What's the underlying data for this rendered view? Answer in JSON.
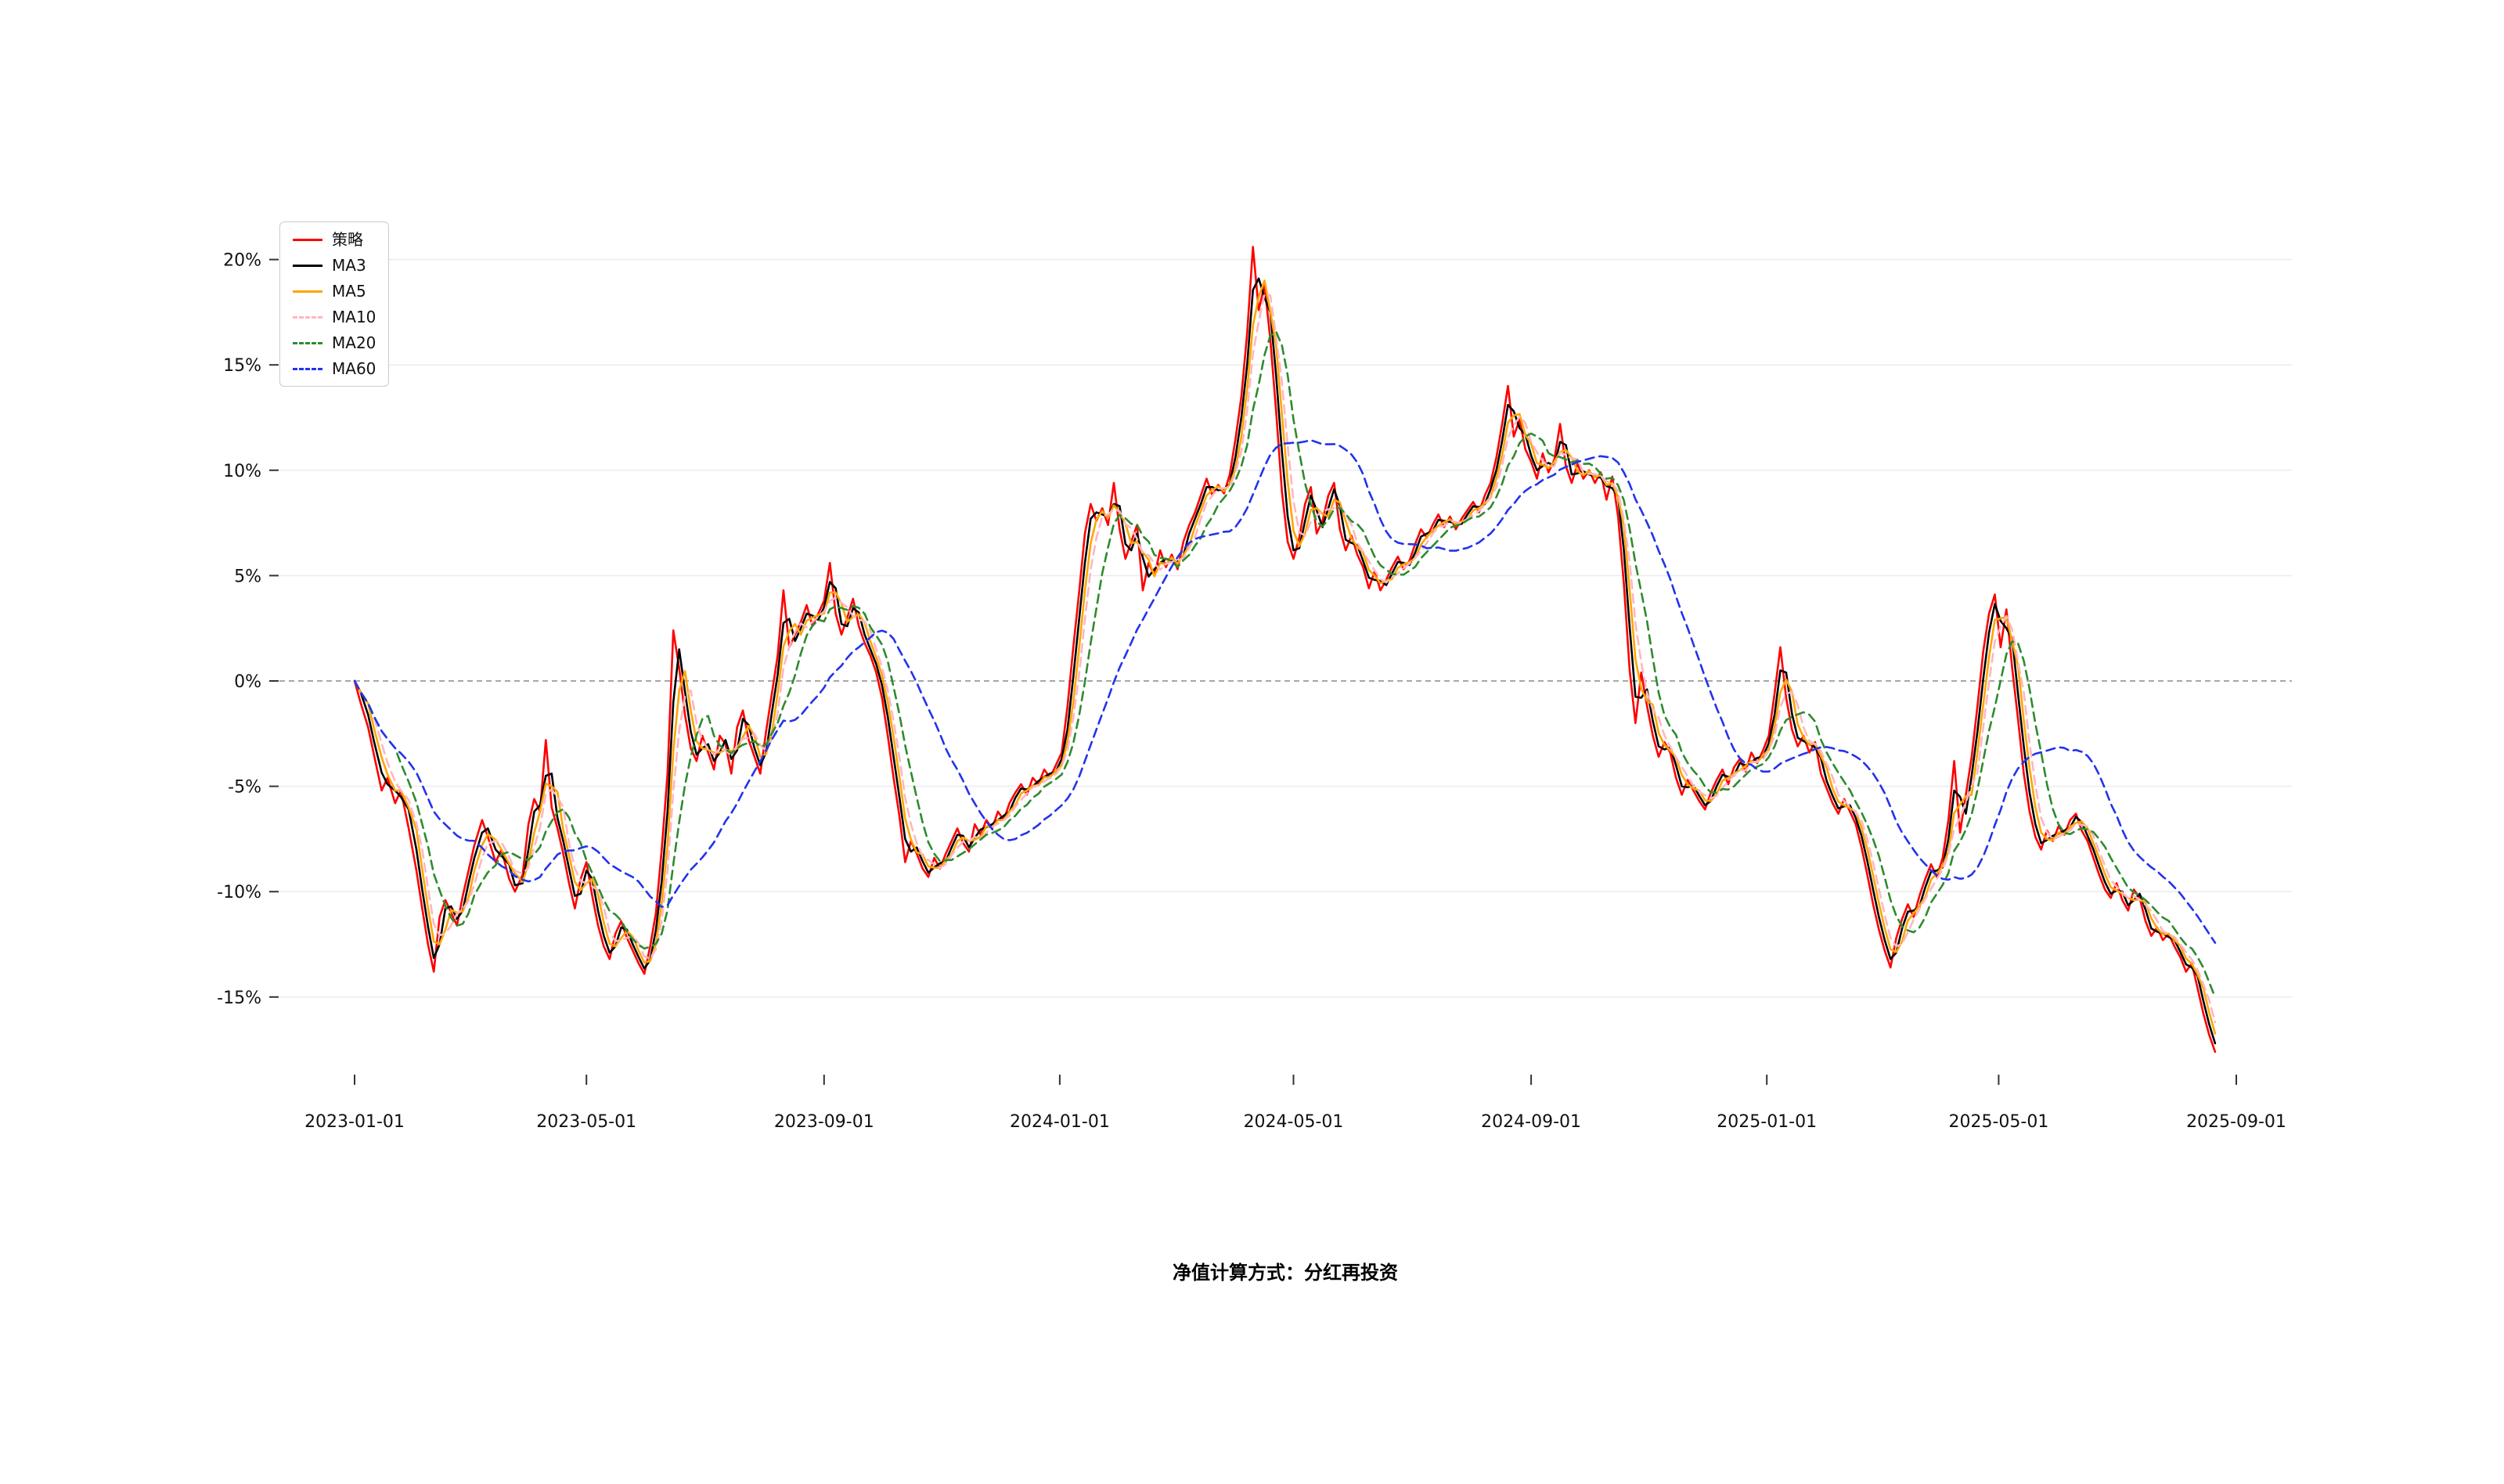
{
  "page": {
    "background": "#ffffff"
  },
  "chart_data": {
    "type": "line",
    "caption": "净值计算方式：分红再投资",
    "legend_position": "upper-left",
    "grid": "horizontal-light-with-dashed-zero-line",
    "x_start_date": "2023-01-01",
    "x_tick_labels": [
      "2023-01-01",
      "2023-05-01",
      "2023-09-01",
      "2024-01-01",
      "2024-05-01",
      "2024-09-01",
      "2025-01-01",
      "2025-05-01",
      "2025-09-01"
    ],
    "y_tick_labels": [
      "20%",
      "15%",
      "10%",
      "5%",
      "0%",
      "-5%",
      "-10%",
      "-15%"
    ],
    "y_tick_values": [
      20,
      15,
      10,
      5,
      0,
      -5,
      -10,
      -15
    ],
    "ylim": [
      -18.7,
      21.7
    ],
    "series": [
      {
        "label": "策略",
        "color": "#ff0000",
        "style": "solid",
        "ma_window": 1
      },
      {
        "label": "MA3",
        "color": "#000000",
        "style": "solid",
        "ma_window": 2
      },
      {
        "label": "MA5",
        "color": "#ffa500",
        "style": "solid",
        "ma_window": 3
      },
      {
        "label": "MA10",
        "color": "#ffb6c1",
        "style": "dashed",
        "ma_window": 4
      },
      {
        "label": "MA20",
        "color": "#2e8b2e",
        "style": "dashed",
        "ma_window": 7
      },
      {
        "label": "MA60",
        "color": "#2233ee",
        "style": "dashed",
        "ma_window": 20
      }
    ],
    "strategy_points": [
      [
        "2023-01-01",
        0.0
      ],
      [
        "2023-01-04",
        -1.0
      ],
      [
        "2023-01-08",
        -2.2
      ],
      [
        "2023-01-11",
        -3.5
      ],
      [
        "2023-01-15",
        -5.2
      ],
      [
        "2023-01-18",
        -4.6
      ],
      [
        "2023-01-22",
        -5.8
      ],
      [
        "2023-01-25",
        -5.2
      ],
      [
        "2023-01-29",
        -7.0
      ],
      [
        "2023-02-02",
        -9.0
      ],
      [
        "2023-02-05",
        -10.8
      ],
      [
        "2023-02-08",
        -12.5
      ],
      [
        "2023-02-11",
        -13.8
      ],
      [
        "2023-02-14",
        -11.2
      ],
      [
        "2023-02-17",
        -10.4
      ],
      [
        "2023-02-20",
        -11.0
      ],
      [
        "2023-02-23",
        -11.6
      ],
      [
        "2023-02-26",
        -10.2
      ],
      [
        "2023-03-01",
        -9.0
      ],
      [
        "2023-03-04",
        -7.8
      ],
      [
        "2023-03-08",
        -6.6
      ],
      [
        "2023-03-11",
        -7.4
      ],
      [
        "2023-03-15",
        -8.6
      ],
      [
        "2023-03-18",
        -8.0
      ],
      [
        "2023-03-22",
        -9.4
      ],
      [
        "2023-03-25",
        -10.0
      ],
      [
        "2023-03-29",
        -9.2
      ],
      [
        "2023-04-01",
        -6.8
      ],
      [
        "2023-04-04",
        -5.6
      ],
      [
        "2023-04-07",
        -6.2
      ],
      [
        "2023-04-10",
        -2.8
      ],
      [
        "2023-04-13",
        -6.0
      ],
      [
        "2023-04-16",
        -7.0
      ],
      [
        "2023-04-19",
        -8.2
      ],
      [
        "2023-04-22",
        -9.6
      ],
      [
        "2023-04-25",
        -10.8
      ],
      [
        "2023-04-28",
        -9.4
      ],
      [
        "2023-05-01",
        -8.6
      ],
      [
        "2023-05-04",
        -10.2
      ],
      [
        "2023-05-07",
        -11.6
      ],
      [
        "2023-05-10",
        -12.6
      ],
      [
        "2023-05-13",
        -13.2
      ],
      [
        "2023-05-16",
        -12.0
      ],
      [
        "2023-05-19",
        -11.4
      ],
      [
        "2023-05-22",
        -12.2
      ],
      [
        "2023-05-25",
        -12.8
      ],
      [
        "2023-05-28",
        -13.4
      ],
      [
        "2023-05-31",
        -13.9
      ],
      [
        "2023-06-03",
        -12.6
      ],
      [
        "2023-06-06",
        -11.0
      ],
      [
        "2023-06-09",
        -8.0
      ],
      [
        "2023-06-12",
        -4.4
      ],
      [
        "2023-06-15",
        2.4
      ],
      [
        "2023-06-18",
        0.6
      ],
      [
        "2023-06-21",
        -1.6
      ],
      [
        "2023-06-24",
        -3.2
      ],
      [
        "2023-06-27",
        -3.8
      ],
      [
        "2023-06-30",
        -2.6
      ],
      [
        "2023-07-03",
        -3.4
      ],
      [
        "2023-07-06",
        -4.2
      ],
      [
        "2023-07-09",
        -2.6
      ],
      [
        "2023-07-12",
        -3.0
      ],
      [
        "2023-07-15",
        -4.4
      ],
      [
        "2023-07-18",
        -2.2
      ],
      [
        "2023-07-21",
        -1.4
      ],
      [
        "2023-07-24",
        -2.8
      ],
      [
        "2023-07-27",
        -3.6
      ],
      [
        "2023-07-30",
        -4.4
      ],
      [
        "2023-08-02",
        -2.4
      ],
      [
        "2023-08-05",
        -0.6
      ],
      [
        "2023-08-08",
        1.2
      ],
      [
        "2023-08-11",
        4.3
      ],
      [
        "2023-08-14",
        1.6
      ],
      [
        "2023-08-17",
        2.2
      ],
      [
        "2023-08-20",
        2.8
      ],
      [
        "2023-08-23",
        3.6
      ],
      [
        "2023-08-26",
        2.6
      ],
      [
        "2023-08-29",
        3.2
      ],
      [
        "2023-09-01",
        3.8
      ],
      [
        "2023-09-04",
        5.6
      ],
      [
        "2023-09-07",
        3.2
      ],
      [
        "2023-09-10",
        2.2
      ],
      [
        "2023-09-13",
        3.0
      ],
      [
        "2023-09-16",
        3.9
      ],
      [
        "2023-09-19",
        2.6
      ],
      [
        "2023-09-22",
        1.8
      ],
      [
        "2023-09-25",
        1.2
      ],
      [
        "2023-09-28",
        0.4
      ],
      [
        "2023-10-01",
        -0.8
      ],
      [
        "2023-10-04",
        -2.6
      ],
      [
        "2023-10-07",
        -4.6
      ],
      [
        "2023-10-10",
        -6.4
      ],
      [
        "2023-10-13",
        -8.6
      ],
      [
        "2023-10-16",
        -7.6
      ],
      [
        "2023-10-19",
        -8.2
      ],
      [
        "2023-10-22",
        -8.9
      ],
      [
        "2023-10-25",
        -9.3
      ],
      [
        "2023-10-28",
        -8.4
      ],
      [
        "2023-10-31",
        -8.9
      ],
      [
        "2023-11-03",
        -8.2
      ],
      [
        "2023-11-06",
        -7.6
      ],
      [
        "2023-11-09",
        -7.0
      ],
      [
        "2023-11-12",
        -7.7
      ],
      [
        "2023-11-15",
        -8.1
      ],
      [
        "2023-11-18",
        -6.8
      ],
      [
        "2023-11-21",
        -7.3
      ],
      [
        "2023-11-24",
        -6.6
      ],
      [
        "2023-11-27",
        -7.0
      ],
      [
        "2023-11-30",
        -6.2
      ],
      [
        "2023-12-03",
        -6.6
      ],
      [
        "2023-12-06",
        -5.8
      ],
      [
        "2023-12-09",
        -5.3
      ],
      [
        "2023-12-12",
        -4.9
      ],
      [
        "2023-12-15",
        -5.4
      ],
      [
        "2023-12-18",
        -4.6
      ],
      [
        "2023-12-21",
        -4.9
      ],
      [
        "2023-12-24",
        -4.2
      ],
      [
        "2023-12-27",
        -4.6
      ],
      [
        "2023-12-30",
        -4.0
      ],
      [
        "2024-01-02",
        -3.4
      ],
      [
        "2024-01-05",
        -1.2
      ],
      [
        "2024-01-08",
        1.6
      ],
      [
        "2024-01-11",
        4.2
      ],
      [
        "2024-01-14",
        7.0
      ],
      [
        "2024-01-17",
        8.4
      ],
      [
        "2024-01-20",
        7.6
      ],
      [
        "2024-01-23",
        8.2
      ],
      [
        "2024-01-26",
        7.4
      ],
      [
        "2024-01-29",
        9.4
      ],
      [
        "2024-02-01",
        7.2
      ],
      [
        "2024-02-04",
        5.8
      ],
      [
        "2024-02-07",
        6.6
      ],
      [
        "2024-02-10",
        7.4
      ],
      [
        "2024-02-13",
        4.3
      ],
      [
        "2024-02-16",
        5.6
      ],
      [
        "2024-02-19",
        5.0
      ],
      [
        "2024-02-22",
        6.2
      ],
      [
        "2024-02-25",
        5.4
      ],
      [
        "2024-02-28",
        6.0
      ],
      [
        "2024-03-02",
        5.3
      ],
      [
        "2024-03-05",
        6.6
      ],
      [
        "2024-03-08",
        7.4
      ],
      [
        "2024-03-11",
        8.0
      ],
      [
        "2024-03-14",
        8.8
      ],
      [
        "2024-03-17",
        9.6
      ],
      [
        "2024-03-20",
        8.8
      ],
      [
        "2024-03-23",
        9.3
      ],
      [
        "2024-03-26",
        8.9
      ],
      [
        "2024-03-29",
        9.8
      ],
      [
        "2024-04-01",
        11.5
      ],
      [
        "2024-04-04",
        13.5
      ],
      [
        "2024-04-07",
        16.5
      ],
      [
        "2024-04-10",
        20.6
      ],
      [
        "2024-04-13",
        17.6
      ],
      [
        "2024-04-16",
        18.8
      ],
      [
        "2024-04-19",
        16.2
      ],
      [
        "2024-04-22",
        12.8
      ],
      [
        "2024-04-25",
        9.0
      ],
      [
        "2024-04-28",
        6.6
      ],
      [
        "2024-05-01",
        5.8
      ],
      [
        "2024-05-04",
        6.8
      ],
      [
        "2024-05-07",
        8.4
      ],
      [
        "2024-05-10",
        9.2
      ],
      [
        "2024-05-13",
        7.0
      ],
      [
        "2024-05-16",
        7.6
      ],
      [
        "2024-05-19",
        8.8
      ],
      [
        "2024-05-22",
        9.4
      ],
      [
        "2024-05-25",
        7.2
      ],
      [
        "2024-05-28",
        6.2
      ],
      [
        "2024-05-31",
        6.9
      ],
      [
        "2024-06-03",
        6.0
      ],
      [
        "2024-06-06",
        5.4
      ],
      [
        "2024-06-09",
        4.4
      ],
      [
        "2024-06-12",
        5.2
      ],
      [
        "2024-06-15",
        4.3
      ],
      [
        "2024-06-18",
        4.8
      ],
      [
        "2024-06-21",
        5.4
      ],
      [
        "2024-06-24",
        5.9
      ],
      [
        "2024-06-27",
        5.3
      ],
      [
        "2024-06-30",
        5.7
      ],
      [
        "2024-07-03",
        6.5
      ],
      [
        "2024-07-06",
        7.2
      ],
      [
        "2024-07-09",
        6.8
      ],
      [
        "2024-07-12",
        7.4
      ],
      [
        "2024-07-15",
        7.9
      ],
      [
        "2024-07-18",
        7.3
      ],
      [
        "2024-07-21",
        7.8
      ],
      [
        "2024-07-24",
        7.2
      ],
      [
        "2024-07-27",
        7.7
      ],
      [
        "2024-07-30",
        8.1
      ],
      [
        "2024-08-02",
        8.5
      ],
      [
        "2024-08-05",
        8.0
      ],
      [
        "2024-08-08",
        8.8
      ],
      [
        "2024-08-11",
        9.4
      ],
      [
        "2024-08-14",
        10.6
      ],
      [
        "2024-08-17",
        12.2
      ],
      [
        "2024-08-20",
        14.0
      ],
      [
        "2024-08-23",
        11.6
      ],
      [
        "2024-08-26",
        12.4
      ],
      [
        "2024-08-29",
        11.0
      ],
      [
        "2024-09-01",
        10.4
      ],
      [
        "2024-09-04",
        9.6
      ],
      [
        "2024-09-07",
        10.8
      ],
      [
        "2024-09-10",
        9.9
      ],
      [
        "2024-09-13",
        10.5
      ],
      [
        "2024-09-16",
        12.2
      ],
      [
        "2024-09-19",
        10.2
      ],
      [
        "2024-09-22",
        9.4
      ],
      [
        "2024-09-25",
        10.3
      ],
      [
        "2024-09-28",
        9.6
      ],
      [
        "2024-10-01",
        10.0
      ],
      [
        "2024-10-04",
        9.4
      ],
      [
        "2024-10-07",
        9.9
      ],
      [
        "2024-10-10",
        8.6
      ],
      [
        "2024-10-13",
        9.7
      ],
      [
        "2024-10-16",
        7.8
      ],
      [
        "2024-10-19",
        4.6
      ],
      [
        "2024-10-22",
        0.5
      ],
      [
        "2024-10-25",
        -2.0
      ],
      [
        "2024-10-28",
        0.4
      ],
      [
        "2024-10-31",
        -1.2
      ],
      [
        "2024-11-03",
        -2.6
      ],
      [
        "2024-11-06",
        -3.6
      ],
      [
        "2024-11-09",
        -2.9
      ],
      [
        "2024-11-12",
        -3.4
      ],
      [
        "2024-11-15",
        -4.6
      ],
      [
        "2024-11-18",
        -5.4
      ],
      [
        "2024-11-21",
        -4.7
      ],
      [
        "2024-11-24",
        -5.2
      ],
      [
        "2024-11-27",
        -5.7
      ],
      [
        "2024-11-30",
        -6.1
      ],
      [
        "2024-12-03",
        -5.3
      ],
      [
        "2024-12-06",
        -4.7
      ],
      [
        "2024-12-09",
        -4.2
      ],
      [
        "2024-12-12",
        -4.9
      ],
      [
        "2024-12-15",
        -4.1
      ],
      [
        "2024-12-18",
        -3.7
      ],
      [
        "2024-12-21",
        -4.3
      ],
      [
        "2024-12-24",
        -3.4
      ],
      [
        "2024-12-27",
        -3.9
      ],
      [
        "2024-12-30",
        -3.3
      ],
      [
        "2025-01-02",
        -2.6
      ],
      [
        "2025-01-05",
        -0.6
      ],
      [
        "2025-01-08",
        1.6
      ],
      [
        "2025-01-11",
        -0.8
      ],
      [
        "2025-01-14",
        -2.3
      ],
      [
        "2025-01-17",
        -3.1
      ],
      [
        "2025-01-20",
        -2.6
      ],
      [
        "2025-01-23",
        -3.4
      ],
      [
        "2025-01-26",
        -2.9
      ],
      [
        "2025-01-29",
        -4.4
      ],
      [
        "2025-02-01",
        -5.1
      ],
      [
        "2025-02-04",
        -5.8
      ],
      [
        "2025-02-07",
        -6.3
      ],
      [
        "2025-02-10",
        -5.6
      ],
      [
        "2025-02-13",
        -6.2
      ],
      [
        "2025-02-16",
        -6.8
      ],
      [
        "2025-02-19",
        -7.9
      ],
      [
        "2025-02-22",
        -9.2
      ],
      [
        "2025-02-25",
        -10.6
      ],
      [
        "2025-02-28",
        -11.8
      ],
      [
        "2025-03-03",
        -12.8
      ],
      [
        "2025-03-06",
        -13.6
      ],
      [
        "2025-03-09",
        -12.2
      ],
      [
        "2025-03-12",
        -11.3
      ],
      [
        "2025-03-15",
        -10.6
      ],
      [
        "2025-03-18",
        -11.2
      ],
      [
        "2025-03-21",
        -10.2
      ],
      [
        "2025-03-24",
        -9.4
      ],
      [
        "2025-03-27",
        -8.7
      ],
      [
        "2025-03-30",
        -9.3
      ],
      [
        "2025-04-02",
        -8.4
      ],
      [
        "2025-04-05",
        -6.6
      ],
      [
        "2025-04-08",
        -3.8
      ],
      [
        "2025-04-11",
        -7.2
      ],
      [
        "2025-04-14",
        -5.4
      ],
      [
        "2025-04-17",
        -3.6
      ],
      [
        "2025-04-20",
        -1.2
      ],
      [
        "2025-04-23",
        1.4
      ],
      [
        "2025-04-26",
        3.2
      ],
      [
        "2025-04-29",
        4.1
      ],
      [
        "2025-05-02",
        1.6
      ],
      [
        "2025-05-05",
        3.4
      ],
      [
        "2025-05-08",
        0.6
      ],
      [
        "2025-05-11",
        -1.8
      ],
      [
        "2025-05-14",
        -4.4
      ],
      [
        "2025-05-17",
        -6.2
      ],
      [
        "2025-05-20",
        -7.4
      ],
      [
        "2025-05-23",
        -8.0
      ],
      [
        "2025-05-26",
        -7.1
      ],
      [
        "2025-05-29",
        -7.6
      ],
      [
        "2025-06-01",
        -6.9
      ],
      [
        "2025-06-04",
        -7.3
      ],
      [
        "2025-06-07",
        -6.6
      ],
      [
        "2025-06-10",
        -6.3
      ],
      [
        "2025-06-13",
        -7.1
      ],
      [
        "2025-06-16",
        -7.6
      ],
      [
        "2025-06-19",
        -8.4
      ],
      [
        "2025-06-22",
        -9.2
      ],
      [
        "2025-06-25",
        -9.9
      ],
      [
        "2025-06-28",
        -10.3
      ],
      [
        "2025-07-01",
        -9.6
      ],
      [
        "2025-07-04",
        -10.4
      ],
      [
        "2025-07-07",
        -10.9
      ],
      [
        "2025-07-10",
        -9.9
      ],
      [
        "2025-07-13",
        -10.3
      ],
      [
        "2025-07-16",
        -11.4
      ],
      [
        "2025-07-19",
        -12.1
      ],
      [
        "2025-07-22",
        -11.7
      ],
      [
        "2025-07-25",
        -12.3
      ],
      [
        "2025-07-28",
        -12.0
      ],
      [
        "2025-07-31",
        -12.6
      ],
      [
        "2025-08-03",
        -13.1
      ],
      [
        "2025-08-06",
        -13.8
      ],
      [
        "2025-08-09",
        -13.4
      ],
      [
        "2025-08-12",
        -14.6
      ],
      [
        "2025-08-15",
        -15.8
      ],
      [
        "2025-08-18",
        -16.8
      ],
      [
        "2025-08-21",
        -17.6
      ]
    ]
  }
}
